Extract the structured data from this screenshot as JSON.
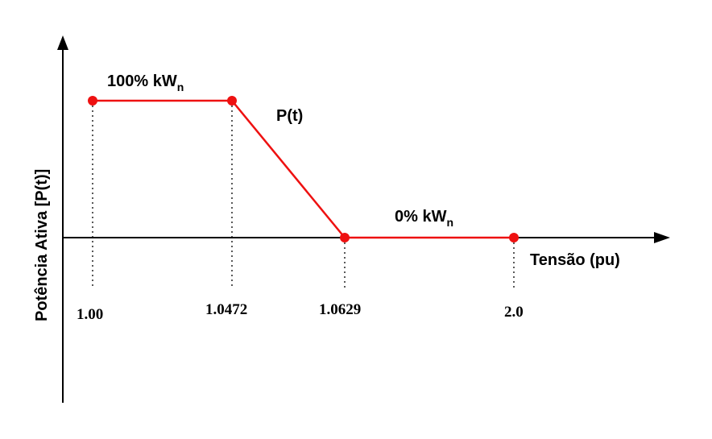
{
  "chart_data": {
    "type": "line",
    "xlabel": "Tensão (pu)",
    "ylabel": "Potência Ativa [P(t)]",
    "curve_label": "P(t)",
    "x_ticks": [
      "1.00",
      "1.0472",
      "1.0629",
      "2.0"
    ],
    "series": [
      {
        "x": [
          "1.00",
          "1.0472",
          "1.0629",
          "2.0"
        ],
        "y": [
          100,
          100,
          0,
          0
        ]
      }
    ],
    "annotations": [
      {
        "text": "100% kW",
        "subscript": "n"
      },
      {
        "text": "0% kW",
        "subscript": "n"
      }
    ],
    "colors": {
      "curve": "#ee1111",
      "axis": "#000000"
    }
  }
}
